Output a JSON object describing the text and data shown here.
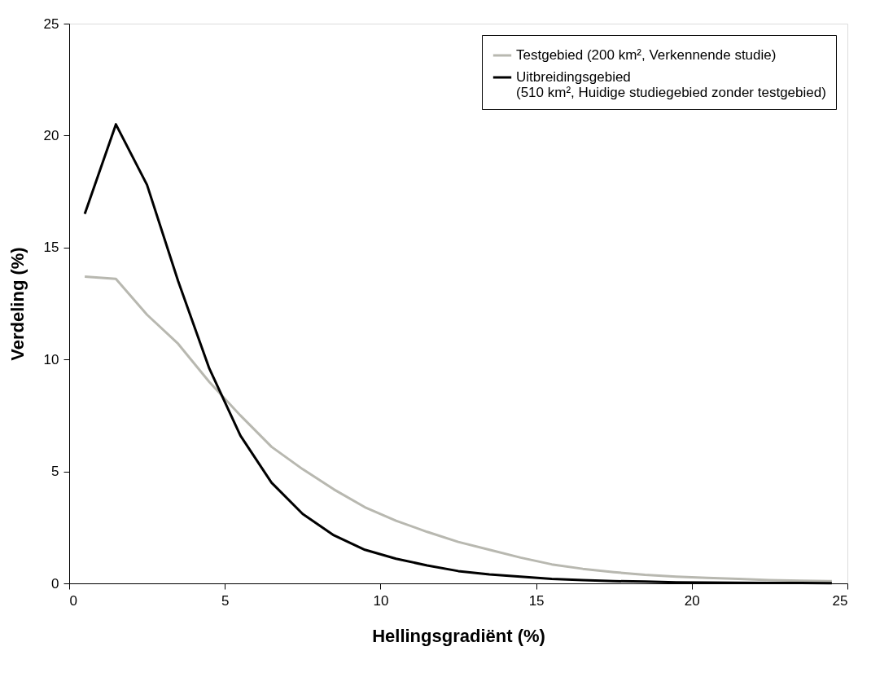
{
  "chart_data": {
    "type": "line",
    "xlabel": "Hellingsgradiënt (%)",
    "ylabel": "Verdeling (%)",
    "x": [
      0.5,
      1.5,
      2.5,
      3.5,
      4.5,
      5.5,
      6.5,
      7.5,
      8.5,
      9.5,
      10.5,
      11.5,
      12.5,
      13.5,
      14.5,
      15.5,
      16.5,
      17.5,
      18.5,
      19.5,
      20.5,
      21.5,
      22.5,
      23.5,
      24.5
    ],
    "series": [
      {
        "name": "Testgebied (200 km², Verkennende studie)",
        "color": "#b8b8b0",
        "values": [
          13.7,
          13.6,
          12.0,
          10.7,
          9.0,
          7.5,
          6.1,
          5.1,
          4.2,
          3.4,
          2.8,
          2.3,
          1.85,
          1.5,
          1.15,
          0.85,
          0.65,
          0.5,
          0.38,
          0.3,
          0.25,
          0.2,
          0.15,
          0.12,
          0.1
        ]
      },
      {
        "name": "Uitbreidingsgebied\n(510 km², Huidige studiegebied zonder testgebied)",
        "color": "#000000",
        "values": [
          16.5,
          20.5,
          17.8,
          13.5,
          9.6,
          6.6,
          4.5,
          3.1,
          2.15,
          1.5,
          1.1,
          0.8,
          0.55,
          0.4,
          0.3,
          0.2,
          0.15,
          0.1,
          0.08,
          0.05,
          0.04,
          0.03,
          0.02,
          0.02,
          0.01
        ]
      }
    ],
    "xlim": [
      0,
      25
    ],
    "xticks": [
      0,
      5,
      10,
      15,
      20,
      25
    ],
    "ylim": [
      0,
      25
    ],
    "yticks": [
      0,
      5,
      10,
      15,
      20,
      25
    ],
    "grid": false,
    "legend": "top right",
    "marker": "none",
    "line_style": "solid"
  }
}
